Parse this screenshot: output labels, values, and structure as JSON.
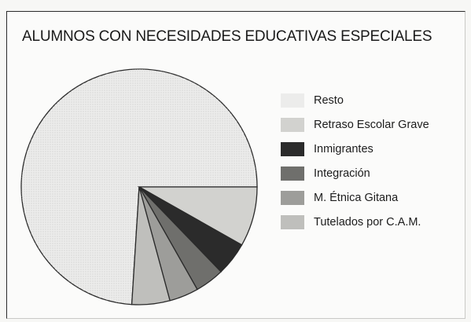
{
  "chart_data": {
    "type": "pie",
    "title": "ALUMNOS CON NECESIDADES EDUCATIVAS ESPECIALES",
    "legend_position": "right",
    "series": [
      {
        "name": "Resto",
        "value": 74.0,
        "color": "#ececeb"
      },
      {
        "name": "Retraso Escolar Grave",
        "value": 8.2,
        "color": "#d2d2cf"
      },
      {
        "name": "Inmigrantes",
        "value": 4.6,
        "color": "#2b2b2b"
      },
      {
        "name": "Integración",
        "value": 4.0,
        "color": "#6f6f6c"
      },
      {
        "name": "M. Étnica Gitana",
        "value": 4.0,
        "color": "#9d9d9a"
      },
      {
        "name": "Tutelados por C.A.M.",
        "value": 5.2,
        "color": "#bfbfbc"
      }
    ]
  }
}
